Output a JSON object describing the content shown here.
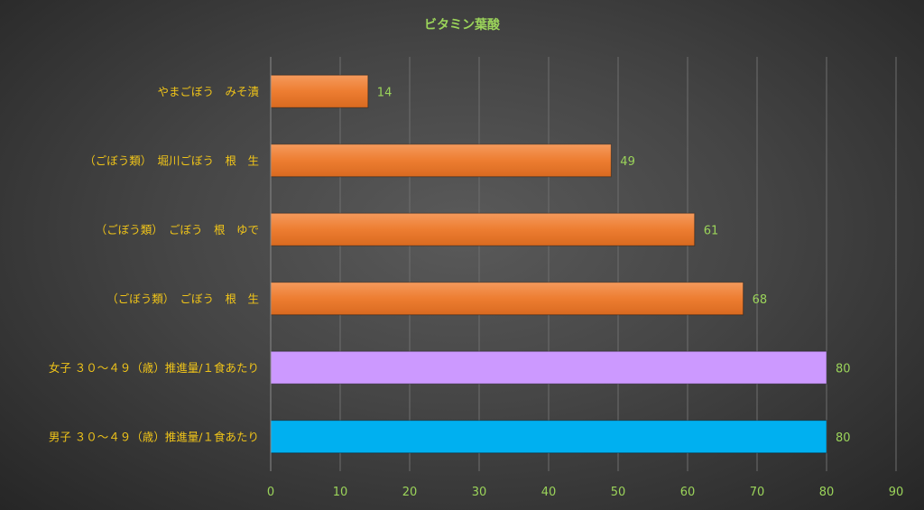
{
  "chart_data": {
    "type": "bar",
    "orientation": "horizontal",
    "title": "ビタミン葉酸",
    "categories": [
      "やまごぼう　みそ漬",
      "（ごぼう類）　堀川ごぼう　根　生",
      "（ごぼう類）　ごぼう　根　ゆで",
      "（ごぼう類）　ごぼう　根　生",
      "女子 ３０～４９（歳）推進量/１食あたり",
      "男子 ３０～４９（歳）推進量/１食あたり"
    ],
    "values": [
      14,
      49,
      61,
      68,
      80,
      80
    ],
    "bar_colors": [
      "#ed7d31",
      "#ed7d31",
      "#ed7d31",
      "#ed7d31",
      "#cc99ff",
      "#00b0f0"
    ],
    "xlim": [
      0,
      90
    ],
    "xticks": [
      "0",
      "10",
      "20",
      "30",
      "40",
      "50",
      "60",
      "70",
      "80",
      "90"
    ],
    "grid": true,
    "legend": "none"
  }
}
